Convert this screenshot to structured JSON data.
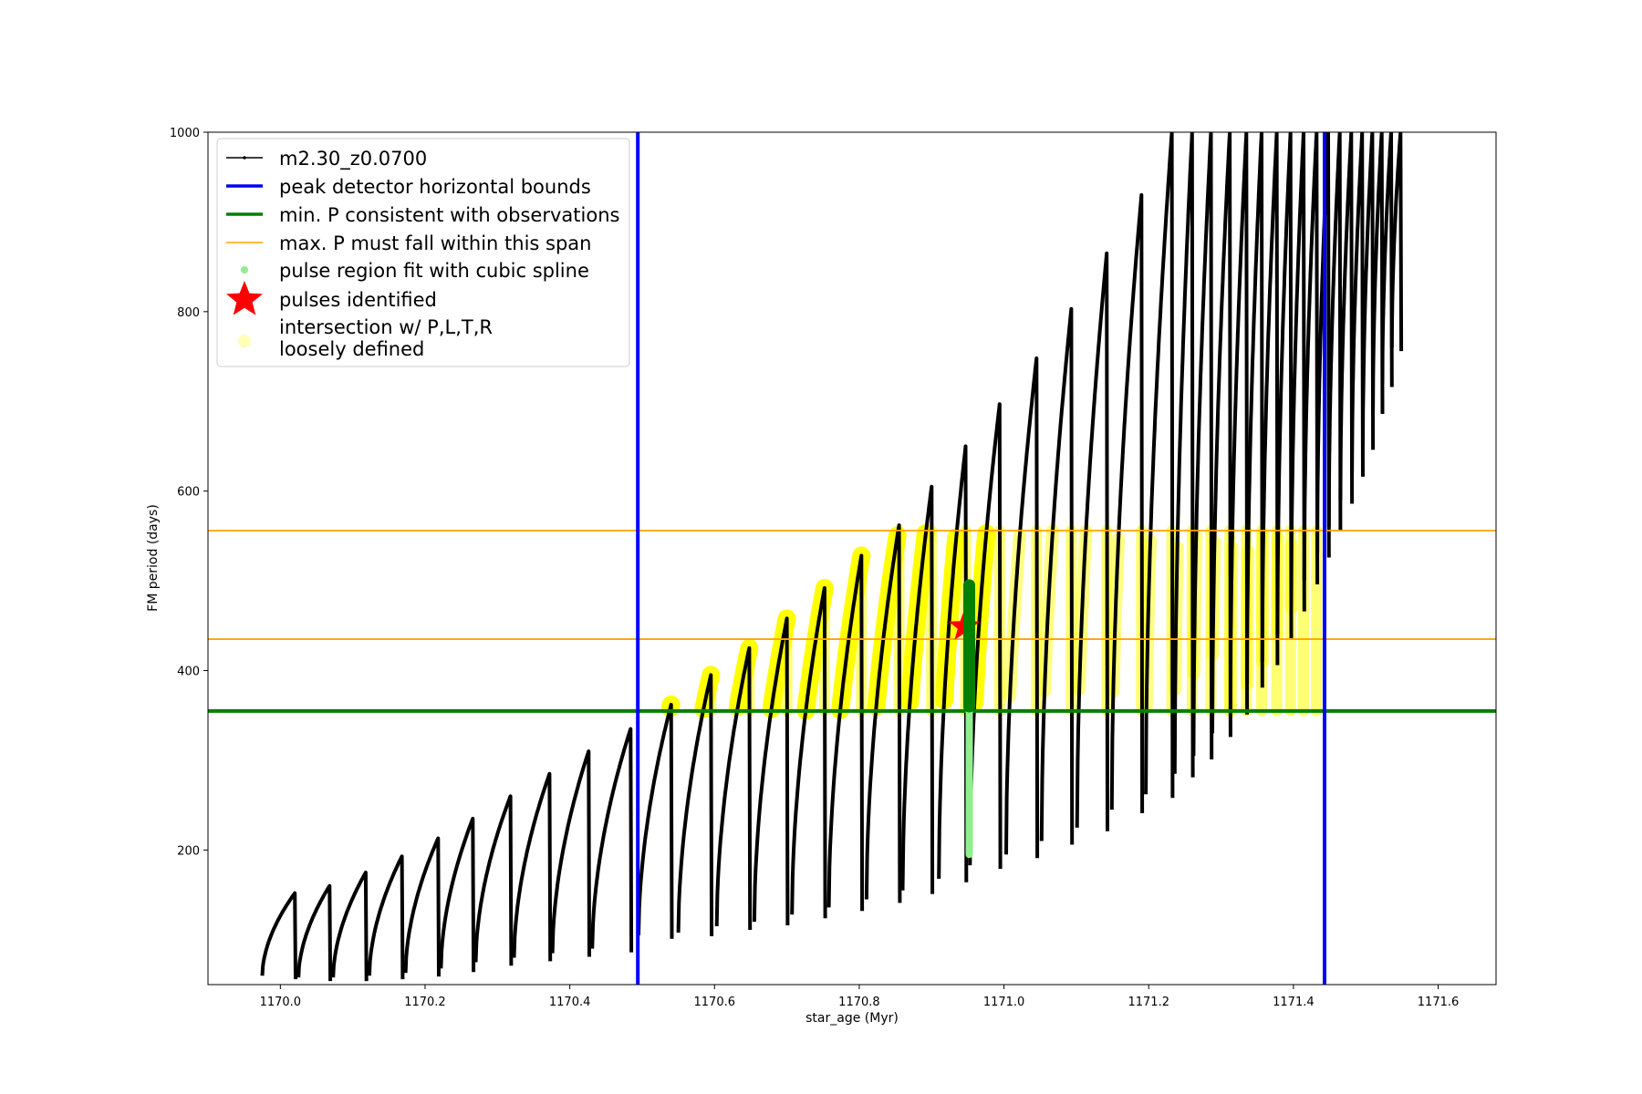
{
  "chart_data": {
    "type": "line",
    "xlabel": "star_age (Myr)",
    "ylabel": "FM period (days)",
    "xlim": [
      1169.9,
      1171.68
    ],
    "ylim": [
      50,
      1000
    ],
    "xticks": [
      "1170.0",
      "1170.2",
      "1170.4",
      "1170.6",
      "1170.8",
      "1171.0",
      "1171.2",
      "1171.4",
      "1171.6"
    ],
    "xtick_values": [
      1170.0,
      1170.2,
      1170.4,
      1170.6,
      1170.8,
      1171.0,
      1171.2,
      1171.4,
      1171.6
    ],
    "yticks": [
      "200",
      "400",
      "600",
      "800",
      "1000"
    ],
    "ytick_values": [
      200,
      400,
      600,
      800,
      1000
    ],
    "grid": false,
    "legend_position": "upper-left",
    "colors": {
      "model": "#000000",
      "bounds": "#0000ff",
      "min_period": "#008000",
      "max_period": "#ffa500",
      "spline": "#90ee90",
      "pulses": "#ff0000",
      "intersection": "#ffff00"
    },
    "series": [
      {
        "name": "m2.30_z0.0700",
        "kind": "sawtooth",
        "pulses": [
          {
            "x0": 1169.975,
            "x1": 1170.02,
            "y_start": 60,
            "y_peak": 152
          },
          {
            "x0": 1170.025,
            "x1": 1170.068,
            "y_start": 58,
            "y_peak": 160
          },
          {
            "x0": 1170.073,
            "x1": 1170.118,
            "y_start": 58,
            "y_peak": 175
          },
          {
            "x0": 1170.123,
            "x1": 1170.168,
            "y_start": 60,
            "y_peak": 193
          },
          {
            "x0": 1170.173,
            "x1": 1170.218,
            "y_start": 63,
            "y_peak": 213
          },
          {
            "x0": 1170.222,
            "x1": 1170.266,
            "y_start": 68,
            "y_peak": 235
          },
          {
            "x0": 1170.27,
            "x1": 1170.318,
            "y_start": 75,
            "y_peak": 260
          },
          {
            "x0": 1170.323,
            "x1": 1170.372,
            "y_start": 80,
            "y_peak": 285
          },
          {
            "x0": 1170.376,
            "x1": 1170.426,
            "y_start": 85,
            "y_peak": 310
          },
          {
            "x0": 1170.431,
            "x1": 1170.484,
            "y_start": 90,
            "y_peak": 335
          },
          {
            "x0": 1170.495,
            "x1": 1170.54,
            "y_start": 105,
            "y_peak": 362
          },
          {
            "x0": 1170.55,
            "x1": 1170.595,
            "y_start": 108,
            "y_peak": 395
          },
          {
            "x0": 1170.603,
            "x1": 1170.648,
            "y_start": 115,
            "y_peak": 425
          },
          {
            "x0": 1170.655,
            "x1": 1170.7,
            "y_start": 120,
            "y_peak": 458
          },
          {
            "x0": 1170.707,
            "x1": 1170.752,
            "y_start": 128,
            "y_peak": 492
          },
          {
            "x0": 1170.758,
            "x1": 1170.803,
            "y_start": 136,
            "y_peak": 528
          },
          {
            "x0": 1170.81,
            "x1": 1170.855,
            "y_start": 145,
            "y_peak": 562
          },
          {
            "x0": 1170.86,
            "x1": 1170.9,
            "y_start": 155,
            "y_peak": 605
          },
          {
            "x0": 1170.91,
            "x1": 1170.947,
            "y_start": 168,
            "y_peak": 650
          },
          {
            "x0": 1170.953,
            "x1": 1170.994,
            "y_start": 183,
            "y_peak": 697
          },
          {
            "x0": 1171.003,
            "x1": 1171.045,
            "y_start": 195,
            "y_peak": 748
          },
          {
            "x0": 1171.052,
            "x1": 1171.093,
            "y_start": 210,
            "y_peak": 803
          },
          {
            "x0": 1171.101,
            "x1": 1171.142,
            "y_start": 225,
            "y_peak": 865
          },
          {
            "x0": 1171.149,
            "x1": 1171.19,
            "y_start": 245,
            "y_peak": 930
          },
          {
            "x0": 1171.196,
            "x1": 1171.232,
            "y_start": 262,
            "y_peak": 1000
          },
          {
            "x0": 1171.236,
            "x1": 1171.26,
            "y_start": 285,
            "y_peak": 1000
          },
          {
            "x0": 1171.262,
            "x1": 1171.286,
            "y_start": 305,
            "y_peak": 1000
          },
          {
            "x0": 1171.288,
            "x1": 1171.312,
            "y_start": 330,
            "y_peak": 1000
          },
          {
            "x0": 1171.313,
            "x1": 1171.335,
            "y_start": 355,
            "y_peak": 1000
          },
          {
            "x0": 1171.336,
            "x1": 1171.356,
            "y_start": 385,
            "y_peak": 1000
          },
          {
            "x0": 1171.357,
            "x1": 1171.377,
            "y_start": 410,
            "y_peak": 1000
          },
          {
            "x0": 1171.378,
            "x1": 1171.396,
            "y_start": 440,
            "y_peak": 1000
          },
          {
            "x0": 1171.397,
            "x1": 1171.414,
            "y_start": 470,
            "y_peak": 1000
          },
          {
            "x0": 1171.415,
            "x1": 1171.432,
            "y_start": 500,
            "y_peak": 1000
          },
          {
            "x0": 1171.433,
            "x1": 1171.448,
            "y_start": 530,
            "y_peak": 1000
          },
          {
            "x0": 1171.449,
            "x1": 1171.464,
            "y_start": 560,
            "y_peak": 1000
          },
          {
            "x0": 1171.465,
            "x1": 1171.48,
            "y_start": 590,
            "y_peak": 1000
          },
          {
            "x0": 1171.481,
            "x1": 1171.495,
            "y_start": 620,
            "y_peak": 1000
          },
          {
            "x0": 1171.496,
            "x1": 1171.509,
            "y_start": 650,
            "y_peak": 1000
          },
          {
            "x0": 1171.51,
            "x1": 1171.522,
            "y_start": 690,
            "y_peak": 1000
          },
          {
            "x0": 1171.523,
            "x1": 1171.535,
            "y_start": 720,
            "y_peak": 1000
          },
          {
            "x0": 1171.536,
            "x1": 1171.548,
            "y_start": 760,
            "y_peak": 1000
          }
        ]
      },
      {
        "name": "peak detector horizontal bounds",
        "kind": "vline",
        "x": [
          1170.494,
          1171.443
        ]
      },
      {
        "name": "min. P consistent with observations",
        "kind": "hline",
        "y": [
          355
        ]
      },
      {
        "name": "max. P must fall within this span",
        "kind": "hline",
        "y": [
          435,
          556
        ]
      },
      {
        "name": "pulse region fit with cubic spline",
        "kind": "segment",
        "x": 1170.952,
        "y0": 195,
        "y1": 360
      },
      {
        "name": "pulses identified",
        "kind": "marker",
        "x": [
          1170.945
        ],
        "y": [
          449
        ]
      },
      {
        "name": "intersection w/ P,L,T,R\nloosely defined",
        "kind": "highlight",
        "y_floor": 355,
        "y_ceiling": 556,
        "x_min": 1170.494,
        "x_max": 1171.443
      }
    ]
  },
  "legend": {
    "items": [
      {
        "label": "m2.30_z0.0700"
      },
      {
        "label": "peak detector horizontal bounds"
      },
      {
        "label": "min. P consistent with observations"
      },
      {
        "label": "max. P must fall within this span"
      },
      {
        "label": "pulse region fit with cubic spline"
      },
      {
        "label": "pulses identified"
      },
      {
        "label_line1": "intersection w/ P,L,T,R",
        "label_line2": "loosely defined"
      }
    ]
  }
}
